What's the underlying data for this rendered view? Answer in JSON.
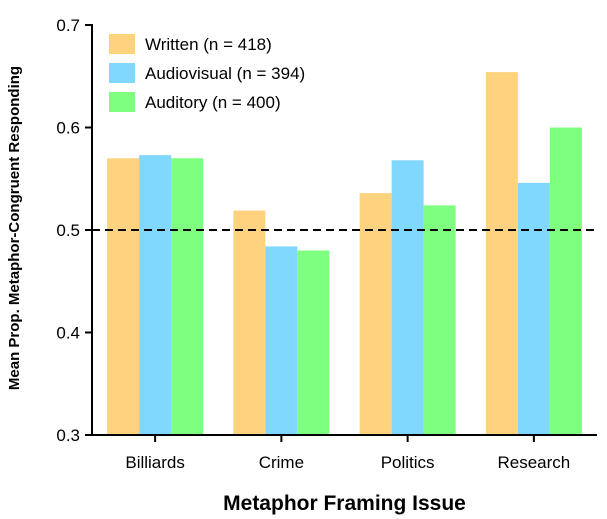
{
  "chart_data": {
    "type": "bar",
    "title": "",
    "xlabel": "Metaphor Framing Issue",
    "ylabel": "Mean Prop. Metaphor-Congruent Responding",
    "categories": [
      "Billiards",
      "Crime",
      "Politics",
      "Research"
    ],
    "series": [
      {
        "name": "Written (n = 418)",
        "color": "#FFD280",
        "values": [
          0.57,
          0.519,
          0.536,
          0.654
        ]
      },
      {
        "name": "Audiovisual (n = 394)",
        "color": "#80D8FF",
        "values": [
          0.573,
          0.484,
          0.568,
          0.546
        ]
      },
      {
        "name": "Auditory (n = 400)",
        "color": "#7FFF7F",
        "values": [
          0.57,
          0.48,
          0.524,
          0.6
        ]
      }
    ],
    "ylim": [
      0.3,
      0.7
    ],
    "yticks": [
      0.3,
      0.4,
      0.5,
      0.6,
      0.7
    ],
    "ytick_labels": [
      "0.3",
      "0.4",
      "0.5",
      "0.6",
      "0.7"
    ],
    "reference_line": {
      "y": 0.5,
      "style": "dashed"
    },
    "legend_position": "top-left",
    "grid": false
  }
}
